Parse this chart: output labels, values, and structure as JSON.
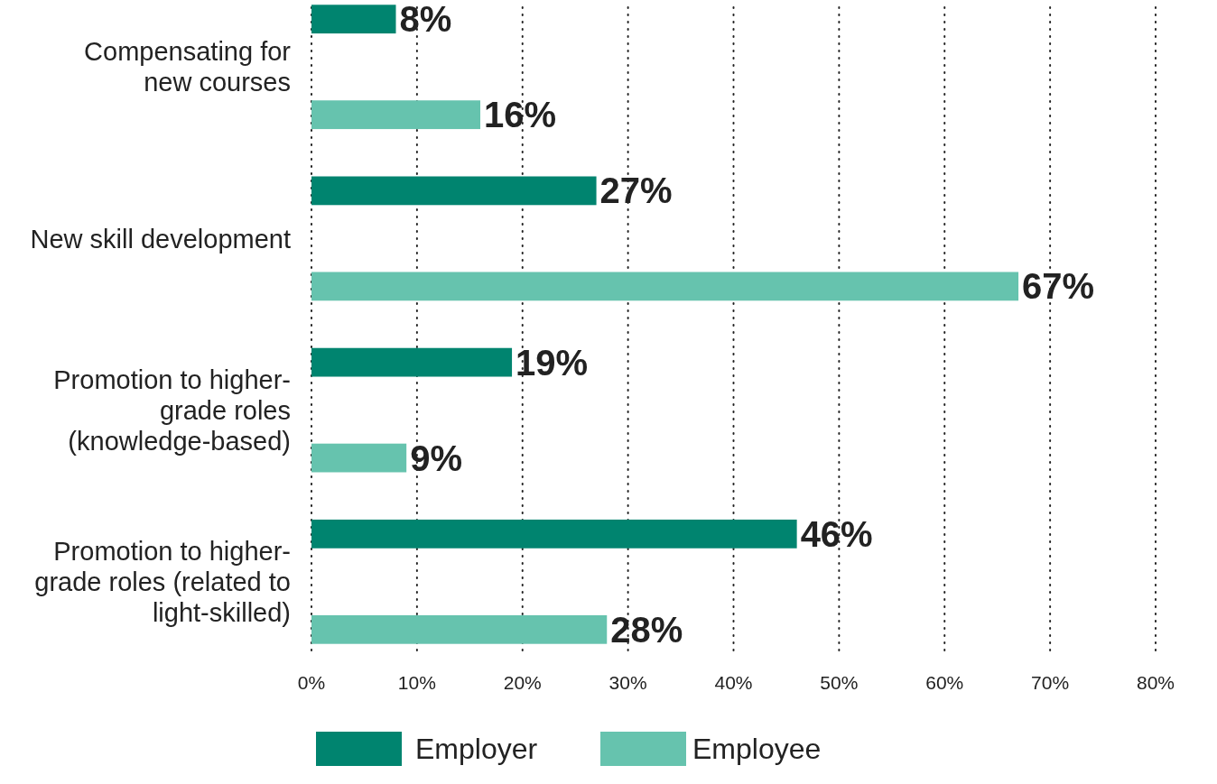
{
  "chart_data": {
    "type": "bar",
    "orientation": "horizontal",
    "categories": [
      "Compensating for new courses",
      "New skill development",
      "Promotion to higher-grade roles (knowledge-based)",
      "Promotion to higher-grade roles (related to light-skilled)"
    ],
    "series": [
      {
        "name": "Employer",
        "color": "#00846f",
        "values": [
          8,
          27,
          19,
          46
        ]
      },
      {
        "name": "Employee",
        "color": "#66c3ae",
        "values": [
          16,
          67,
          9,
          28
        ]
      }
    ],
    "xlim": [
      0,
      80
    ],
    "xticks": [
      {
        "value": 0,
        "label": "0%"
      },
      {
        "value": 10,
        "label": "10%"
      },
      {
        "value": 20,
        "label": "20%"
      },
      {
        "value": 30,
        "label": "30%"
      },
      {
        "value": 40,
        "label": "40%"
      },
      {
        "value": 50,
        "label": "50%"
      },
      {
        "value": 60,
        "label": "60%"
      },
      {
        "value": 70,
        "label": "70%"
      },
      {
        "value": 80,
        "label": "80%"
      }
    ],
    "value_labels": [
      [
        "8%",
        "27%",
        "19%",
        "46%"
      ],
      [
        "16%",
        "67%",
        "9%",
        "28%"
      ]
    ],
    "grid": "x",
    "legend": "bottom"
  }
}
